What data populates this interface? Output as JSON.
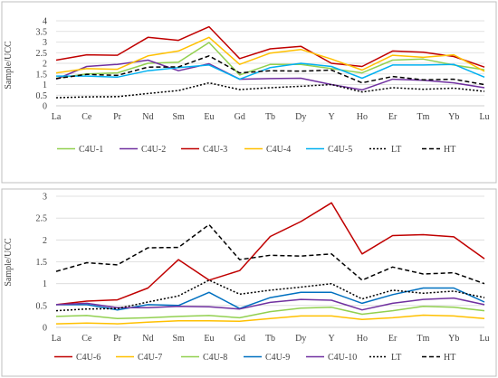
{
  "chart_data": [
    {
      "type": "line",
      "categories": [
        "La",
        "Ce",
        "Pr",
        "Nd",
        "Sm",
        "Eu",
        "Gd",
        "Tb",
        "Dy",
        "Y",
        "Ho",
        "Er",
        "Tm",
        "Yb",
        "Lu"
      ],
      "ylabel": "Sample/UCC",
      "xlabel": "",
      "ylim": [
        0,
        4
      ],
      "yticks": [
        0,
        0.5,
        1,
        1.5,
        2,
        2.5,
        3,
        3.5,
        4
      ],
      "grid": true,
      "legend": "bottom",
      "series": [
        {
          "name": "C4U-1",
          "color": "#92d050",
          "dash": "solid",
          "values": [
            1.3,
            1.5,
            1.55,
            2.0,
            2.05,
            2.98,
            1.45,
            1.95,
            1.95,
            1.75,
            1.55,
            2.15,
            2.2,
            1.92,
            1.7
          ]
        },
        {
          "name": "C4U-2",
          "color": "#7030a0",
          "dash": "solid",
          "values": [
            1.25,
            1.85,
            1.95,
            2.15,
            1.65,
            1.98,
            1.25,
            1.28,
            1.3,
            1.0,
            0.75,
            1.25,
            1.2,
            1.08,
            0.85
          ]
        },
        {
          "name": "C4U-3",
          "color": "#c00000",
          "dash": "solid",
          "values": [
            2.15,
            2.4,
            2.38,
            3.22,
            3.08,
            3.72,
            2.22,
            2.68,
            2.8,
            2.0,
            1.85,
            2.58,
            2.52,
            2.32,
            1.82
          ]
        },
        {
          "name": "C4U-4",
          "color": "#ffc000",
          "dash": "solid",
          "values": [
            1.55,
            1.75,
            1.72,
            2.35,
            2.58,
            3.22,
            1.95,
            2.48,
            2.65,
            2.2,
            1.68,
            2.38,
            2.28,
            2.4,
            1.62
          ]
        },
        {
          "name": "C4U-5",
          "color": "#00b0f0",
          "dash": "solid",
          "values": [
            1.4,
            1.4,
            1.35,
            1.65,
            1.8,
            1.92,
            1.25,
            1.8,
            2.0,
            1.85,
            1.3,
            1.92,
            1.92,
            1.95,
            1.35
          ]
        },
        {
          "name": "LT",
          "color": "#000000",
          "dash": "dotted",
          "values": [
            0.38,
            0.42,
            0.43,
            0.58,
            0.72,
            1.08,
            0.76,
            0.85,
            0.92,
            1.0,
            0.65,
            0.85,
            0.78,
            0.83,
            0.68
          ]
        },
        {
          "name": "HT",
          "color": "#000000",
          "dash": "dashed",
          "values": [
            1.28,
            1.48,
            1.43,
            1.82,
            1.83,
            2.35,
            1.55,
            1.65,
            1.63,
            1.68,
            1.08,
            1.38,
            1.22,
            1.25,
            1.0
          ]
        }
      ]
    },
    {
      "type": "line",
      "categories": [
        "La",
        "Ce",
        "Pr",
        "Nd",
        "Sm",
        "Eu",
        "Gd",
        "Tb",
        "Dy",
        "Y",
        "Ho",
        "Er",
        "Tm",
        "Yb",
        "Lu"
      ],
      "ylabel": "Sample/UCC",
      "xlabel": "",
      "ylim": [
        0,
        3
      ],
      "yticks": [
        0,
        0.5,
        1,
        1.5,
        2,
        2.5,
        3
      ],
      "grid": true,
      "legend": "bottom",
      "series": [
        {
          "name": "C4U-6",
          "color": "#c00000",
          "dash": "solid",
          "values": [
            0.52,
            0.6,
            0.63,
            0.9,
            1.55,
            1.08,
            1.3,
            2.08,
            2.42,
            2.85,
            1.68,
            2.1,
            2.12,
            2.07,
            1.57
          ]
        },
        {
          "name": "C4U-7",
          "color": "#ffc000",
          "dash": "solid",
          "values": [
            0.08,
            0.1,
            0.08,
            0.12,
            0.15,
            0.15,
            0.14,
            0.2,
            0.26,
            0.26,
            0.18,
            0.22,
            0.28,
            0.26,
            0.2
          ]
        },
        {
          "name": "C4U-8",
          "color": "#92d050",
          "dash": "solid",
          "values": [
            0.25,
            0.27,
            0.2,
            0.22,
            0.25,
            0.27,
            0.22,
            0.36,
            0.44,
            0.46,
            0.3,
            0.38,
            0.48,
            0.46,
            0.38
          ]
        },
        {
          "name": "C4U-9",
          "color": "#0070c0",
          "dash": "solid",
          "values": [
            0.52,
            0.52,
            0.4,
            0.52,
            0.5,
            0.8,
            0.43,
            0.68,
            0.8,
            0.8,
            0.55,
            0.75,
            0.9,
            0.9,
            0.58
          ]
        },
        {
          "name": "C4U-10",
          "color": "#7030a0",
          "dash": "solid",
          "values": [
            0.52,
            0.55,
            0.45,
            0.45,
            0.48,
            0.47,
            0.42,
            0.57,
            0.64,
            0.62,
            0.4,
            0.55,
            0.64,
            0.67,
            0.52
          ]
        },
        {
          "name": "LT",
          "color": "#000000",
          "dash": "dotted",
          "values": [
            0.38,
            0.42,
            0.43,
            0.58,
            0.72,
            1.08,
            0.76,
            0.85,
            0.92,
            1.0,
            0.65,
            0.85,
            0.78,
            0.83,
            0.68
          ]
        },
        {
          "name": "HT",
          "color": "#000000",
          "dash": "dashed",
          "values": [
            1.28,
            1.48,
            1.43,
            1.82,
            1.83,
            2.35,
            1.55,
            1.65,
            1.63,
            1.68,
            1.08,
            1.38,
            1.22,
            1.25,
            1.0
          ]
        }
      ]
    }
  ]
}
